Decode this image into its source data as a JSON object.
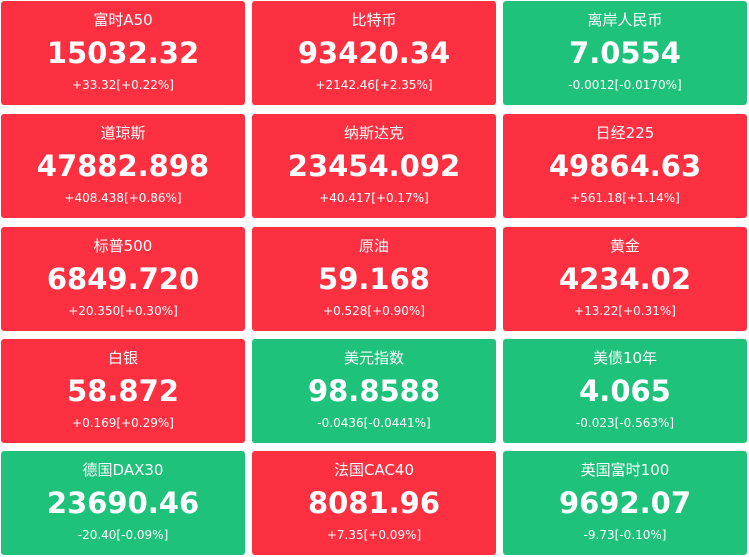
{
  "colors": {
    "up": "#fc3040",
    "down": "#1ec27a",
    "text": "#ffffff"
  },
  "tiles": [
    {
      "name": "富时A50",
      "price": "15032.32",
      "change": "+33.32[+0.22%]",
      "trend": "up"
    },
    {
      "name": "比特币",
      "price": "93420.34",
      "change": "+2142.46[+2.35%]",
      "trend": "up"
    },
    {
      "name": "离岸人民币",
      "price": "7.0554",
      "change": "-0.0012[-0.0170%]",
      "trend": "down"
    },
    {
      "name": "道琼斯",
      "price": "47882.898",
      "change": "+408.438[+0.86%]",
      "trend": "up"
    },
    {
      "name": "纳斯达克",
      "price": "23454.092",
      "change": "+40.417[+0.17%]",
      "trend": "up"
    },
    {
      "name": "日经225",
      "price": "49864.63",
      "change": "+561.18[+1.14%]",
      "trend": "up"
    },
    {
      "name": "标普500",
      "price": "6849.720",
      "change": "+20.350[+0.30%]",
      "trend": "up"
    },
    {
      "name": "原油",
      "price": "59.168",
      "change": "+0.528[+0.90%]",
      "trend": "up"
    },
    {
      "name": "黄金",
      "price": "4234.02",
      "change": "+13.22[+0.31%]",
      "trend": "up"
    },
    {
      "name": "白银",
      "price": "58.872",
      "change": "+0.169[+0.29%]",
      "trend": "up"
    },
    {
      "name": "美元指数",
      "price": "98.8588",
      "change": "-0.0436[-0.0441%]",
      "trend": "down"
    },
    {
      "name": "美债10年",
      "price": "4.065",
      "change": "-0.023[-0.563%]",
      "trend": "down"
    },
    {
      "name": "德国DAX30",
      "price": "23690.46",
      "change": "-20.40[-0.09%]",
      "trend": "down"
    },
    {
      "name": "法国CAC40",
      "price": "8081.96",
      "change": "+7.35[+0.09%]",
      "trend": "up"
    },
    {
      "name": "英国富时100",
      "price": "9692.07",
      "change": "-9.73[-0.10%]",
      "trend": "down"
    }
  ]
}
